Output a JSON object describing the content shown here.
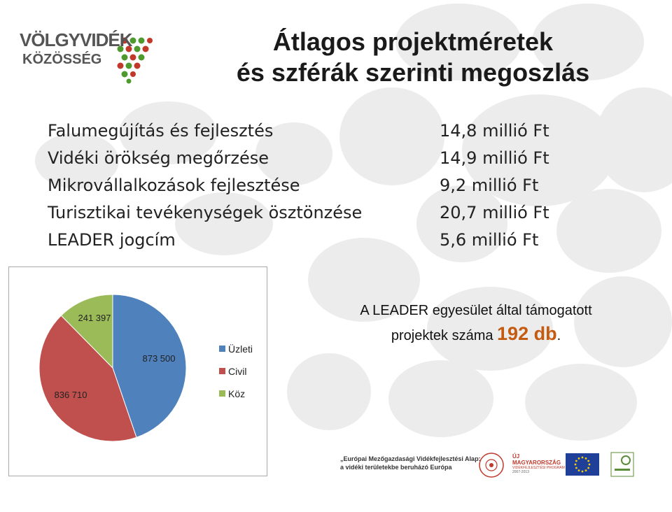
{
  "logo": {
    "line1": "VÖLGYVIDÉK",
    "line2": "KÖZÖSSÉG"
  },
  "title": {
    "line1": "Átlagos projektméretek",
    "line2": "és szférák szerinti megoszlás"
  },
  "categories": [
    {
      "label": "Falumegújítás és fejlesztés",
      "value": "14,8 millió Ft"
    },
    {
      "label": "Vidéki örökség megőrzése",
      "value": "14,9 millió Ft"
    },
    {
      "label": "Mikrovállalkozások fejlesztése",
      "value": "9,2 millió Ft"
    },
    {
      "label": "Turisztikai tevékenységek ösztönzése",
      "value": "20,7 millió Ft"
    },
    {
      "label": "LEADER jogcím",
      "value": "5,6 millió Ft"
    }
  ],
  "note": {
    "line1": "A LEADER egyesület által támogatott",
    "line2_prefix": "projektek száma ",
    "count": "192 db",
    "suffix": "."
  },
  "chart_data": {
    "type": "pie",
    "title": "",
    "series": [
      {
        "values": [
          873500,
          836710,
          241397
        ]
      }
    ],
    "categories": [
      "Üzleti",
      "Civil",
      "Köz"
    ],
    "data_labels": [
      "873 500",
      "836 710",
      "241 397"
    ],
    "colors": [
      "#4f81bd",
      "#c0504d",
      "#9bbb59"
    ],
    "legend_position": "right"
  },
  "footer": {
    "fund_line1": "„Európai Mezőgazdasági Vidékfejlesztési Alap:",
    "fund_line2": "a vidéki területekbe beruházó Európa",
    "umft_line1": "ÚJ MAGYARORSZÁG",
    "umft_line2": "VIDÉKFEJLESZTÉSI PROGRAM",
    "umft_line3": "2007-2013",
    "leader_text": "LEADER"
  }
}
